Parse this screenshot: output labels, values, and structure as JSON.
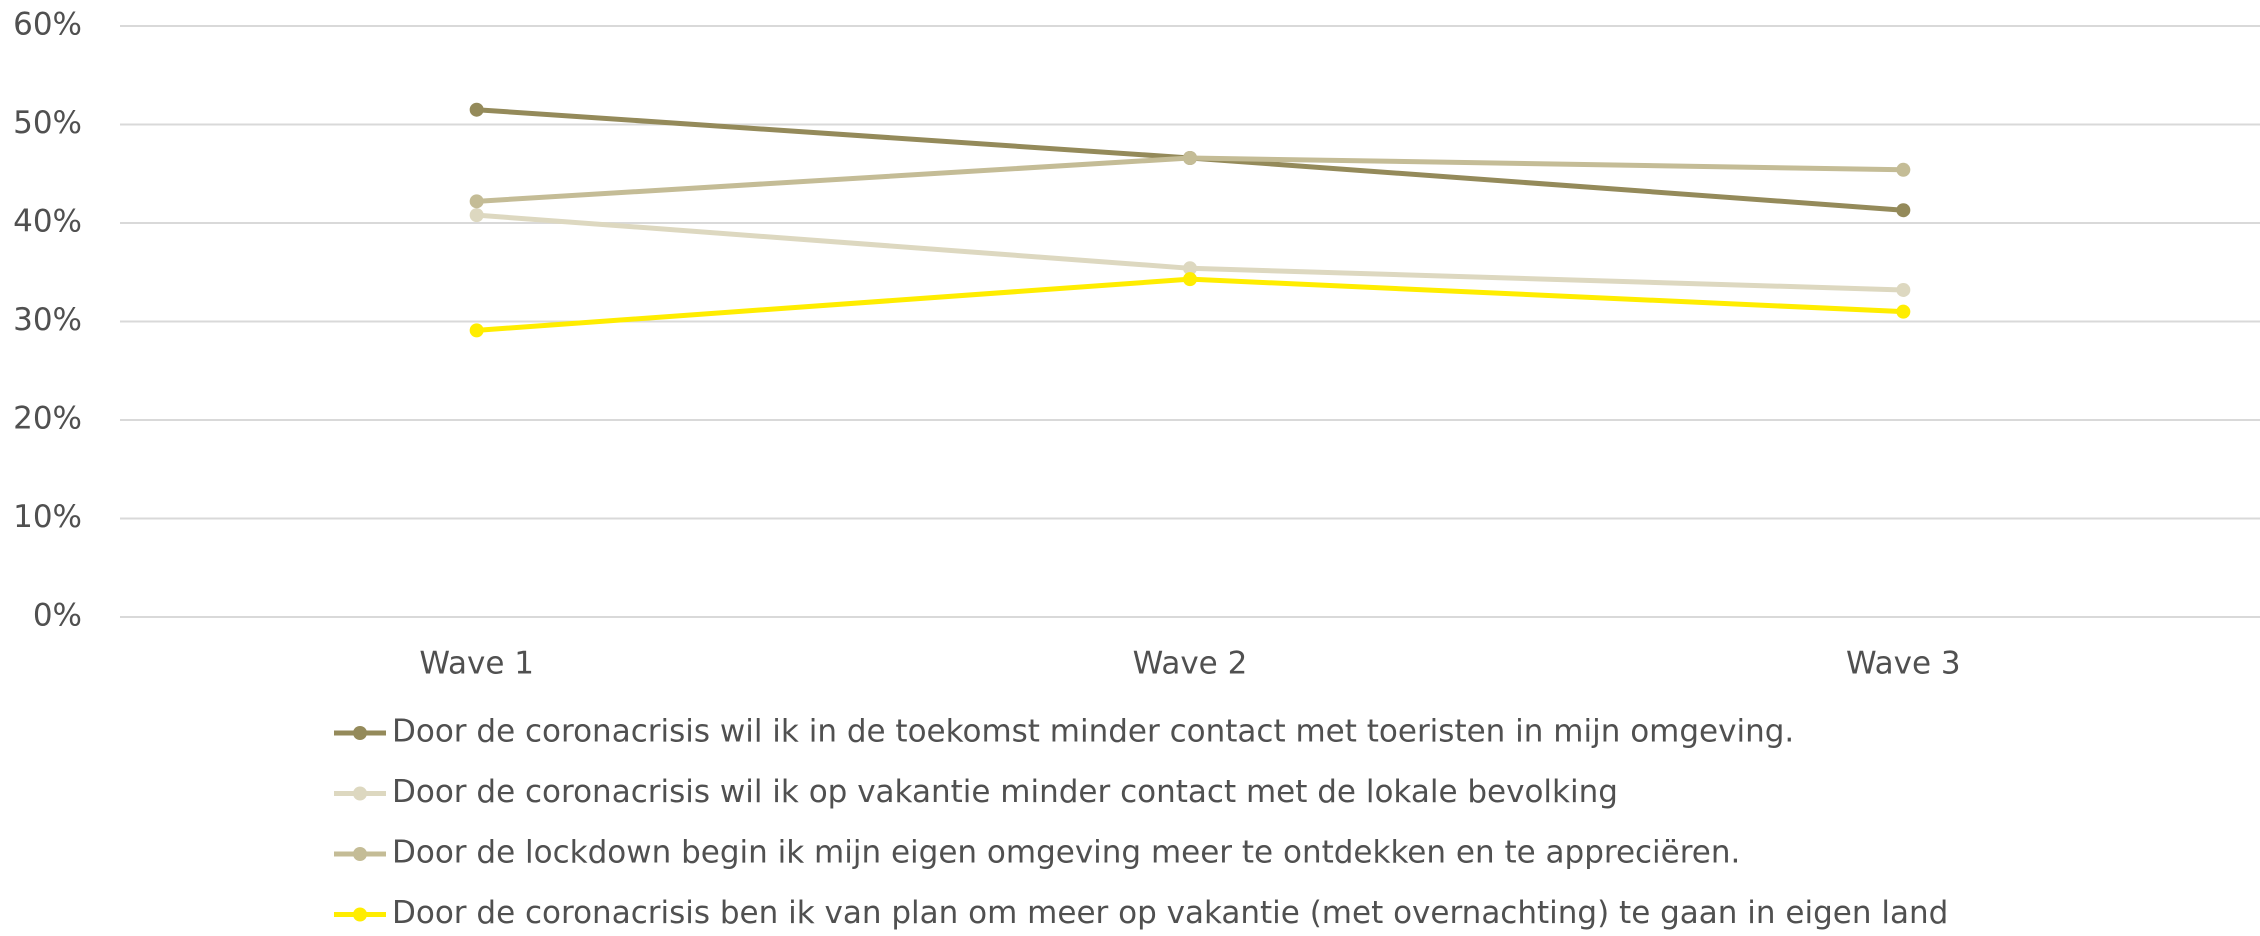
{
  "chart_data": {
    "type": "line",
    "categories": [
      "Wave 1",
      "Wave 2",
      "Wave 3"
    ],
    "series": [
      {
        "name": "Door de coronacrisis wil ik in de toekomst minder contact met toeristen in mijn omgeving.",
        "color": "#948a5a",
        "values": [
          51.5,
          46.6,
          41.3
        ]
      },
      {
        "name": "Door de coronacrisis wil ik op vakantie minder contact met de lokale bevolking",
        "color": "#ddd8c0",
        "values": [
          40.8,
          35.4,
          33.2
        ]
      },
      {
        "name": "Door de lockdown begin ik mijn eigen omgeving meer te ontdekken en te appreciëren.",
        "color": "#c4bc96",
        "values": [
          42.2,
          46.6,
          45.4
        ]
      },
      {
        "name": "Door de coronacrisis ben ik van plan om meer op vakantie (met overnachting) te gaan in eigen land",
        "color": "#ffed00",
        "values": [
          29.1,
          34.3,
          31.0
        ]
      }
    ],
    "ylim": [
      0,
      60
    ],
    "yticks": [
      {
        "value": 0,
        "label": "0%"
      },
      {
        "value": 10,
        "label": "10%"
      },
      {
        "value": 20,
        "label": "20%"
      },
      {
        "value": 30,
        "label": "30%"
      },
      {
        "value": 40,
        "label": "40%"
      },
      {
        "value": 50,
        "label": "50%"
      },
      {
        "value": 60,
        "label": "60%"
      }
    ],
    "grid": true,
    "legend": "bottom"
  }
}
